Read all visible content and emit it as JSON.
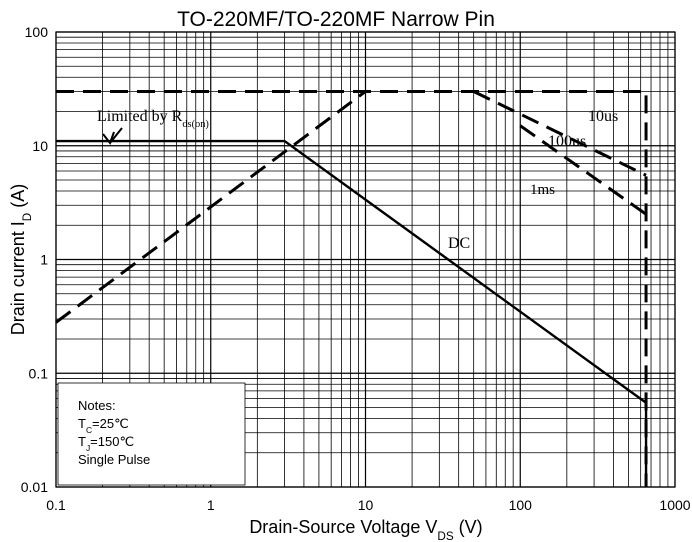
{
  "chart_data": {
    "type": "line",
    "title": "TO-220MF/TO-220MF Narrow Pin",
    "x_label": {
      "text": "Drain-Source Voltage V",
      "sub": "DS",
      "suffix": " (V)"
    },
    "y_label": {
      "text": "Drain current I",
      "sub": "D",
      "suffix": " (A)"
    },
    "xscale": "log",
    "yscale": "log",
    "grid": true,
    "xlim": [
      0.1,
      1000
    ],
    "ylim": [
      0.01,
      100
    ],
    "xticks": [
      0.1,
      1,
      10,
      100,
      1000
    ],
    "yticks": [
      0.01,
      0.1,
      1,
      10,
      100
    ],
    "series": [
      {
        "name": "DC",
        "color": "#000000",
        "dashed": false,
        "x": [
          0.1,
          3,
          650,
          650
        ],
        "values": [
          11,
          11,
          0.055,
          0.01
        ]
      },
      {
        "color": "#000000",
        "dashed": true,
        "x": [
          0.1,
          10
        ],
        "values": [
          0.28,
          30
        ]
      },
      {
        "color": "#000000",
        "dashed": true,
        "x": [
          0.1,
          650,
          650
        ],
        "values": [
          30,
          30,
          0.01
        ]
      },
      {
        "name": "10us",
        "color": "#000000",
        "dashed": true,
        "x": [
          50,
          650
        ],
        "values": [
          30,
          5.5
        ]
      },
      {
        "name": "100us",
        "color": "#000000",
        "dashed": true,
        "x": [
          100,
          650
        ],
        "values": [
          15,
          2.5
        ]
      }
    ],
    "annotations": [
      {
        "text": "Limited by R",
        "sub": "ds(on)"
      },
      {
        "text": "1ms"
      }
    ],
    "notes": [
      {
        "text": "Notes:"
      },
      {
        "text": "T",
        "sub": "C",
        "suffix": "=25℃"
      },
      {
        "text": "T",
        "sub": "J",
        "suffix": "=150℃"
      },
      {
        "text": "Single Pulse"
      }
    ]
  }
}
